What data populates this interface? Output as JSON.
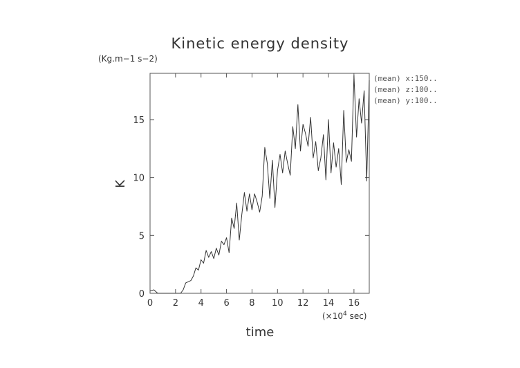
{
  "chart_data": {
    "type": "line",
    "title": "Kinetic energy density",
    "units": "(Kg.m−1 s−2)",
    "xlabel": "time",
    "ylabel": "K",
    "x_unit_prefix": "(×10",
    "x_unit_exp": "4",
    "x_unit_suffix": " sec)",
    "xlim": [
      0,
      17.2
    ],
    "ylim": [
      0,
      19
    ],
    "xticks": [
      0,
      2,
      4,
      6,
      8,
      10,
      12,
      14,
      16
    ],
    "yticks": [
      0,
      5,
      10,
      15
    ],
    "annotations": [
      "(mean) x:150..",
      "(mean) z:100..",
      "(mean) y:100.."
    ],
    "grid": false,
    "series": [
      {
        "x": [
          0,
          0.3,
          0.6,
          0.9,
          1.2,
          1.5,
          1.8,
          2.1,
          2.4,
          2.6,
          2.8,
          3.0,
          3.2,
          3.4,
          3.6,
          3.8,
          4.0,
          4.2,
          4.4,
          4.6,
          4.8,
          5.0,
          5.2,
          5.4,
          5.6,
          5.8,
          6.0,
          6.2,
          6.4,
          6.6,
          6.8,
          7.0,
          7.2,
          7.4,
          7.6,
          7.8,
          8.0,
          8.2,
          8.4,
          8.6,
          8.8,
          9.0,
          9.2,
          9.4,
          9.6,
          9.8,
          10.0,
          10.2,
          10.4,
          10.6,
          10.8,
          11.0,
          11.2,
          11.4,
          11.6,
          11.8,
          12.0,
          12.2,
          12.4,
          12.6,
          12.8,
          13.0,
          13.2,
          13.4,
          13.6,
          13.8,
          14.0,
          14.2,
          14.4,
          14.6,
          14.8,
          15.0,
          15.2,
          15.4,
          15.6,
          15.8,
          16.0,
          16.2,
          16.4,
          16.6,
          16.8,
          17.0,
          17.2
        ],
        "y": [
          0.2,
          0.3,
          0.0,
          0.0,
          0.0,
          0.0,
          0.0,
          0.0,
          0.0,
          0.3,
          0.9,
          1.0,
          1.1,
          1.5,
          2.2,
          2.0,
          2.9,
          2.6,
          3.7,
          3.1,
          3.6,
          3.0,
          3.9,
          3.3,
          4.5,
          4.2,
          4.8,
          3.5,
          6.5,
          5.6,
          7.8,
          4.6,
          6.8,
          8.7,
          7.1,
          8.6,
          7.2,
          8.6,
          7.9,
          7.0,
          8.4,
          12.6,
          11.2,
          8.2,
          11.5,
          7.4,
          10.6,
          12.0,
          10.4,
          12.3,
          11.2,
          10.2,
          14.4,
          12.5,
          16.3,
          12.3,
          14.6,
          13.8,
          12.7,
          15.2,
          11.7,
          13.1,
          10.6,
          11.7,
          13.7,
          9.8,
          15.0,
          10.4,
          13.0,
          10.9,
          12.5,
          9.4,
          15.8,
          11.3,
          12.4,
          11.4,
          18.8,
          13.5,
          16.8,
          14.7,
          17.5,
          9.7,
          18.4
        ]
      }
    ]
  }
}
